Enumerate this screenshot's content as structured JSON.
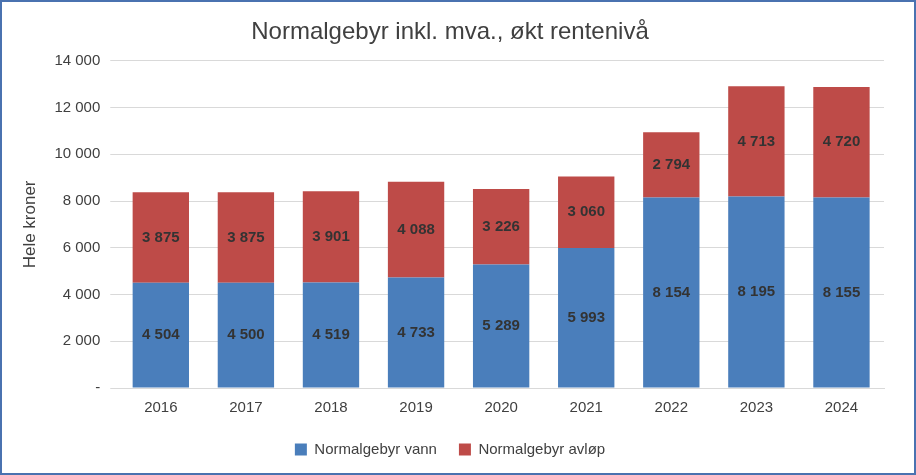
{
  "chart_data": {
    "type": "bar",
    "title": "Normalgebyr inkl. mva., økt rentenivå",
    "ylabel": "Hele kroner",
    "categories": [
      "2016",
      "2017",
      "2018",
      "2019",
      "2020",
      "2021",
      "2022",
      "2023",
      "2024"
    ],
    "series": [
      {
        "name": "Normalgebyr vann",
        "color": "#4a7ebb",
        "values": [
          4504,
          4500,
          4519,
          4733,
          5289,
          5993,
          8154,
          8195,
          8155
        ],
        "value_labels": [
          "4 504",
          "4 500",
          "4 519",
          "4 733",
          "5 289",
          "5 993",
          "8 154",
          "8 195",
          "8 155"
        ]
      },
      {
        "name": "Normalgebyr avløp",
        "color": "#be4b48",
        "values": [
          3875,
          3875,
          3901,
          4088,
          3226,
          3060,
          2794,
          4713,
          4720
        ],
        "value_labels": [
          "3 875",
          "3 875",
          "3 901",
          "4 088",
          "3 226",
          "3 060",
          "2 794",
          "4 713",
          "4 720"
        ]
      }
    ],
    "ylim": [
      0,
      14000
    ],
    "yticks": [
      {
        "value": 0,
        "label": "-"
      },
      {
        "value": 2000,
        "label": "2 000"
      },
      {
        "value": 4000,
        "label": "4 000"
      },
      {
        "value": 6000,
        "label": "6 000"
      },
      {
        "value": 8000,
        "label": "8 000"
      },
      {
        "value": 10000,
        "label": "10 000"
      },
      {
        "value": 12000,
        "label": "12 000"
      },
      {
        "value": 14000,
        "label": "14 000"
      }
    ],
    "stacked": true,
    "data_labels": true,
    "grid": true,
    "legend": "bottom"
  }
}
